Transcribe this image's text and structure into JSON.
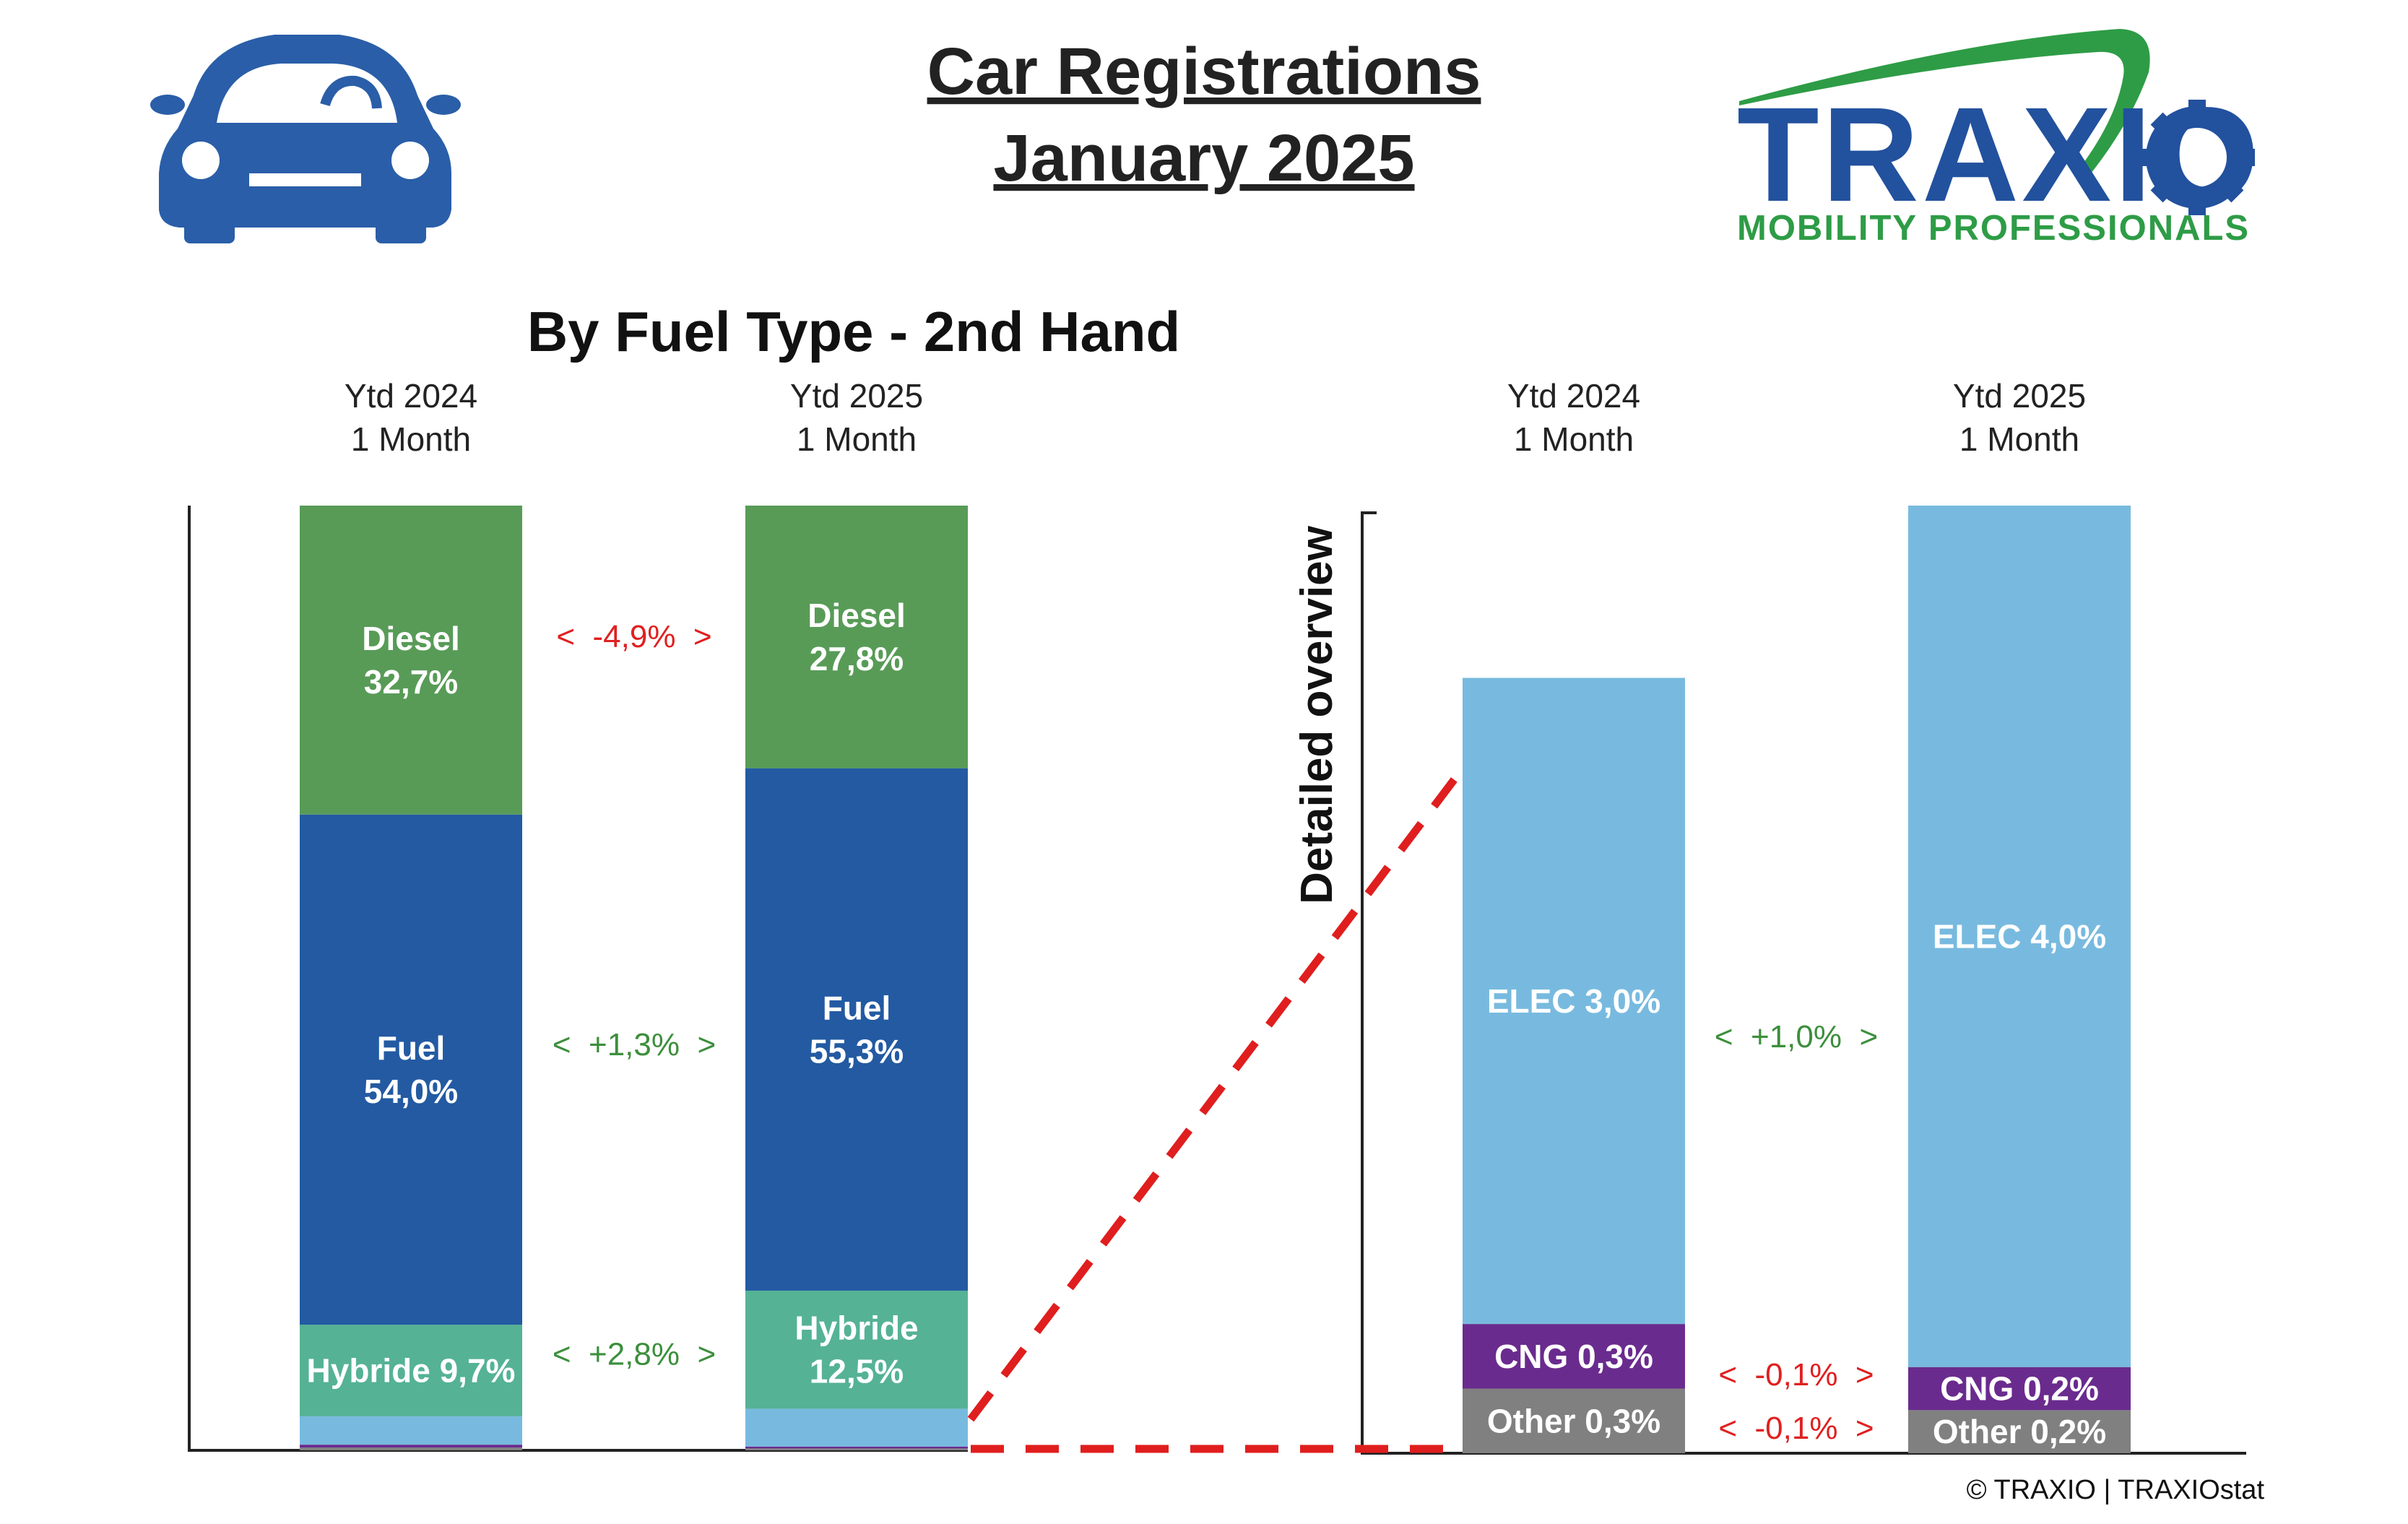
{
  "header": {
    "title_line1": "Car Registrations",
    "title_line2": "January 2025",
    "subtitle": "By Fuel Type - 2nd Hand",
    "car_icon": "car-front-icon",
    "logo": {
      "text": "TRAXIO",
      "tagline": "MOBILITY PROFESSIONALS",
      "colors": {
        "main": "#22519e",
        "accent": "#2e9c46"
      }
    },
    "copyright": "© TRAXIO | TRAXIOstat"
  },
  "detail_label": "Detailed overview",
  "colors": {
    "Diesel": "#589b57",
    "Fuel": "#235aa2",
    "Hybride": "#55b295",
    "ELEC": "#78badf",
    "CNG": "#6a2b8e",
    "Other": "#808080",
    "positive": "#3c8f3c",
    "negative": "#e02020",
    "connector": "#e01e1e"
  },
  "chart_data": [
    {
      "type": "bar",
      "stacked": true,
      "title": "",
      "categories": [
        {
          "line1": "Ytd 2024",
          "line2": "1 Month"
        },
        {
          "line1": "Ytd 2025",
          "line2": "1 Month"
        }
      ],
      "ylim": [
        0,
        100
      ],
      "grid": false,
      "legend": "none",
      "series": [
        {
          "name": "Other",
          "values": [
            0.3,
            0.2
          ],
          "labels": [
            "",
            ""
          ]
        },
        {
          "name": "CNG",
          "values": [
            0.3,
            0.2
          ],
          "labels": [
            "",
            ""
          ]
        },
        {
          "name": "ELEC",
          "values": [
            3.0,
            4.0
          ],
          "labels": [
            "",
            ""
          ]
        },
        {
          "name": "Hybride",
          "values": [
            9.7,
            12.5
          ],
          "labels": [
            "Hybride 9,7%",
            "Hybride\n12,5%"
          ]
        },
        {
          "name": "Fuel",
          "values": [
            54.0,
            55.3
          ],
          "labels": [
            "Fuel\n54,0%",
            "Fuel\n55,3%"
          ]
        },
        {
          "name": "Diesel",
          "values": [
            32.7,
            27.8
          ],
          "labels": [
            "Diesel\n32,7%",
            "Diesel\n27,8%"
          ]
        }
      ],
      "deltas": [
        {
          "series": "Diesel",
          "text": "<  -4,9%  >",
          "sign": "negative"
        },
        {
          "series": "Fuel",
          "text": "<  +1,3%  >",
          "sign": "positive"
        },
        {
          "series": "Hybride",
          "text": "<  +2,8%  >",
          "sign": "positive"
        }
      ]
    },
    {
      "type": "bar",
      "stacked": true,
      "title": "",
      "categories": [
        {
          "line1": "Ytd 2024",
          "line2": "1 Month"
        },
        {
          "line1": "Ytd 2025",
          "line2": "1 Month"
        }
      ],
      "ylim": [
        0,
        4.4
      ],
      "grid": false,
      "legend": "none",
      "series": [
        {
          "name": "Other",
          "values": [
            0.3,
            0.2
          ],
          "labels": [
            "Other 0,3%",
            "Other 0,2%"
          ]
        },
        {
          "name": "CNG",
          "values": [
            0.3,
            0.2
          ],
          "labels": [
            "CNG 0,3%",
            "CNG 0,2%"
          ]
        },
        {
          "name": "ELEC",
          "values": [
            3.0,
            4.0
          ],
          "labels": [
            "ELEC 3,0%",
            "ELEC 4,0%"
          ]
        }
      ],
      "deltas": [
        {
          "series": "ELEC",
          "text": "<  +1,0%  >",
          "sign": "positive"
        },
        {
          "series": "CNG",
          "text": "<  -0,1%  >",
          "sign": "negative"
        },
        {
          "series": "Other",
          "text": "<  -0,1%  >",
          "sign": "negative"
        }
      ]
    }
  ]
}
